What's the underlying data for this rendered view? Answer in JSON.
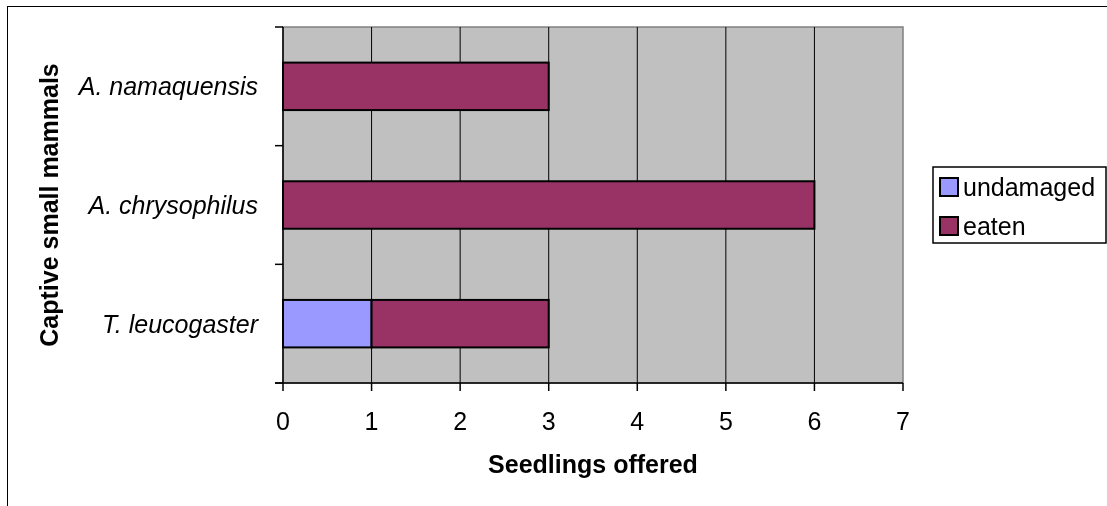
{
  "chart_data": {
    "type": "bar",
    "orientation": "horizontal",
    "stacked": true,
    "xlabel": "Seedlings offered",
    "ylabel": "Captive small mammals",
    "categories": [
      "A. namaquensis",
      "A. chrysophilus",
      "T. leucogaster"
    ],
    "series": [
      {
        "name": "undamaged",
        "color": "#9999ff",
        "values": [
          0,
          0,
          1
        ]
      },
      {
        "name": "eaten",
        "color": "#993366",
        "values": [
          3,
          6,
          2
        ]
      }
    ],
    "xlim": [
      0,
      7
    ],
    "xticks": [
      0,
      1,
      2,
      3,
      4,
      5,
      6,
      7
    ],
    "grid": "x",
    "legend": "right"
  }
}
